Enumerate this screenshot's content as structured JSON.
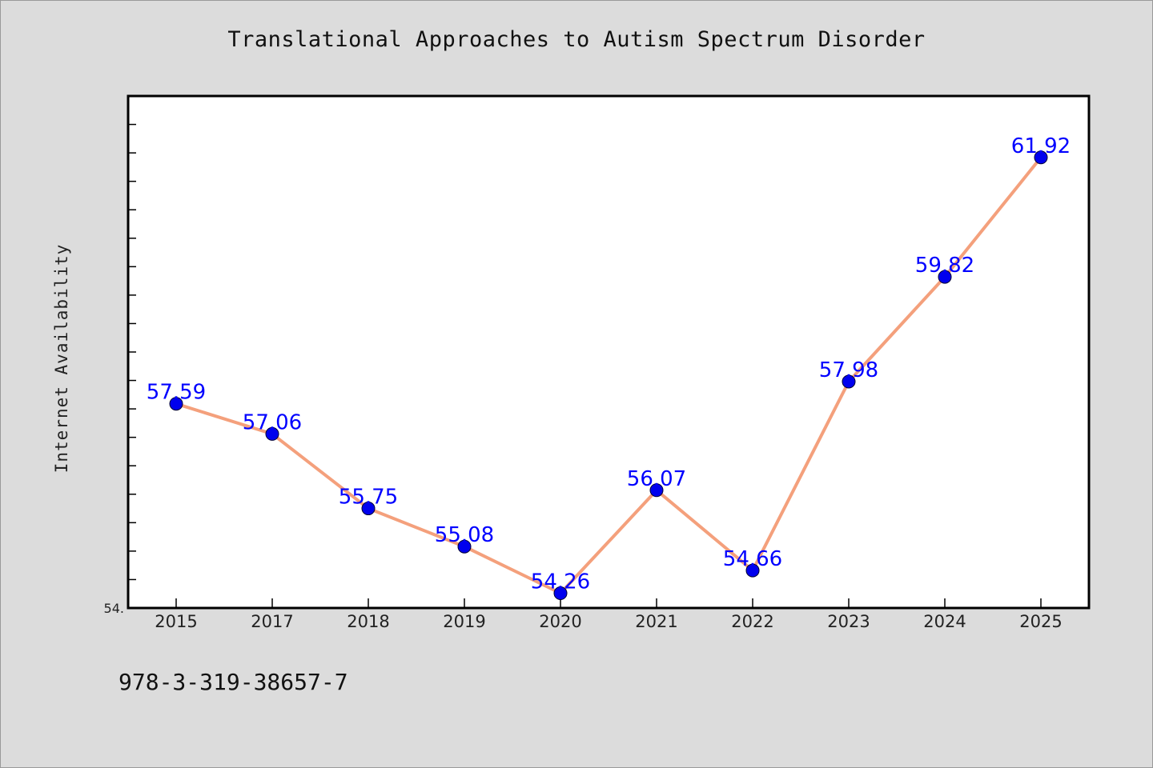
{
  "chart_data": {
    "type": "line",
    "title": "Translational Approaches to Autism Spectrum Disorder",
    "ylabel": "Internet Availability",
    "xlabel": "",
    "categories": [
      "2015",
      "2017",
      "2018",
      "2019",
      "2020",
      "2021",
      "2022",
      "2023",
      "2024",
      "2025"
    ],
    "values": [
      57.59,
      57.06,
      55.75,
      55.08,
      54.26,
      56.07,
      54.66,
      57.98,
      59.82,
      61.92
    ],
    "data_labels": [
      "57.59",
      "57.06",
      "55.75",
      "55.08",
      "54.26",
      "56.07",
      "54.66",
      "57.98",
      "59.82",
      "61.92"
    ],
    "y_min_label": "54.",
    "ylim": [
      54.0,
      63.0
    ],
    "grid": false,
    "line_color": "#f4a07c",
    "marker_color": "#0000ee",
    "label_color": "#0000ff"
  },
  "footer": {
    "isbn": "978-3-319-38657-7"
  }
}
